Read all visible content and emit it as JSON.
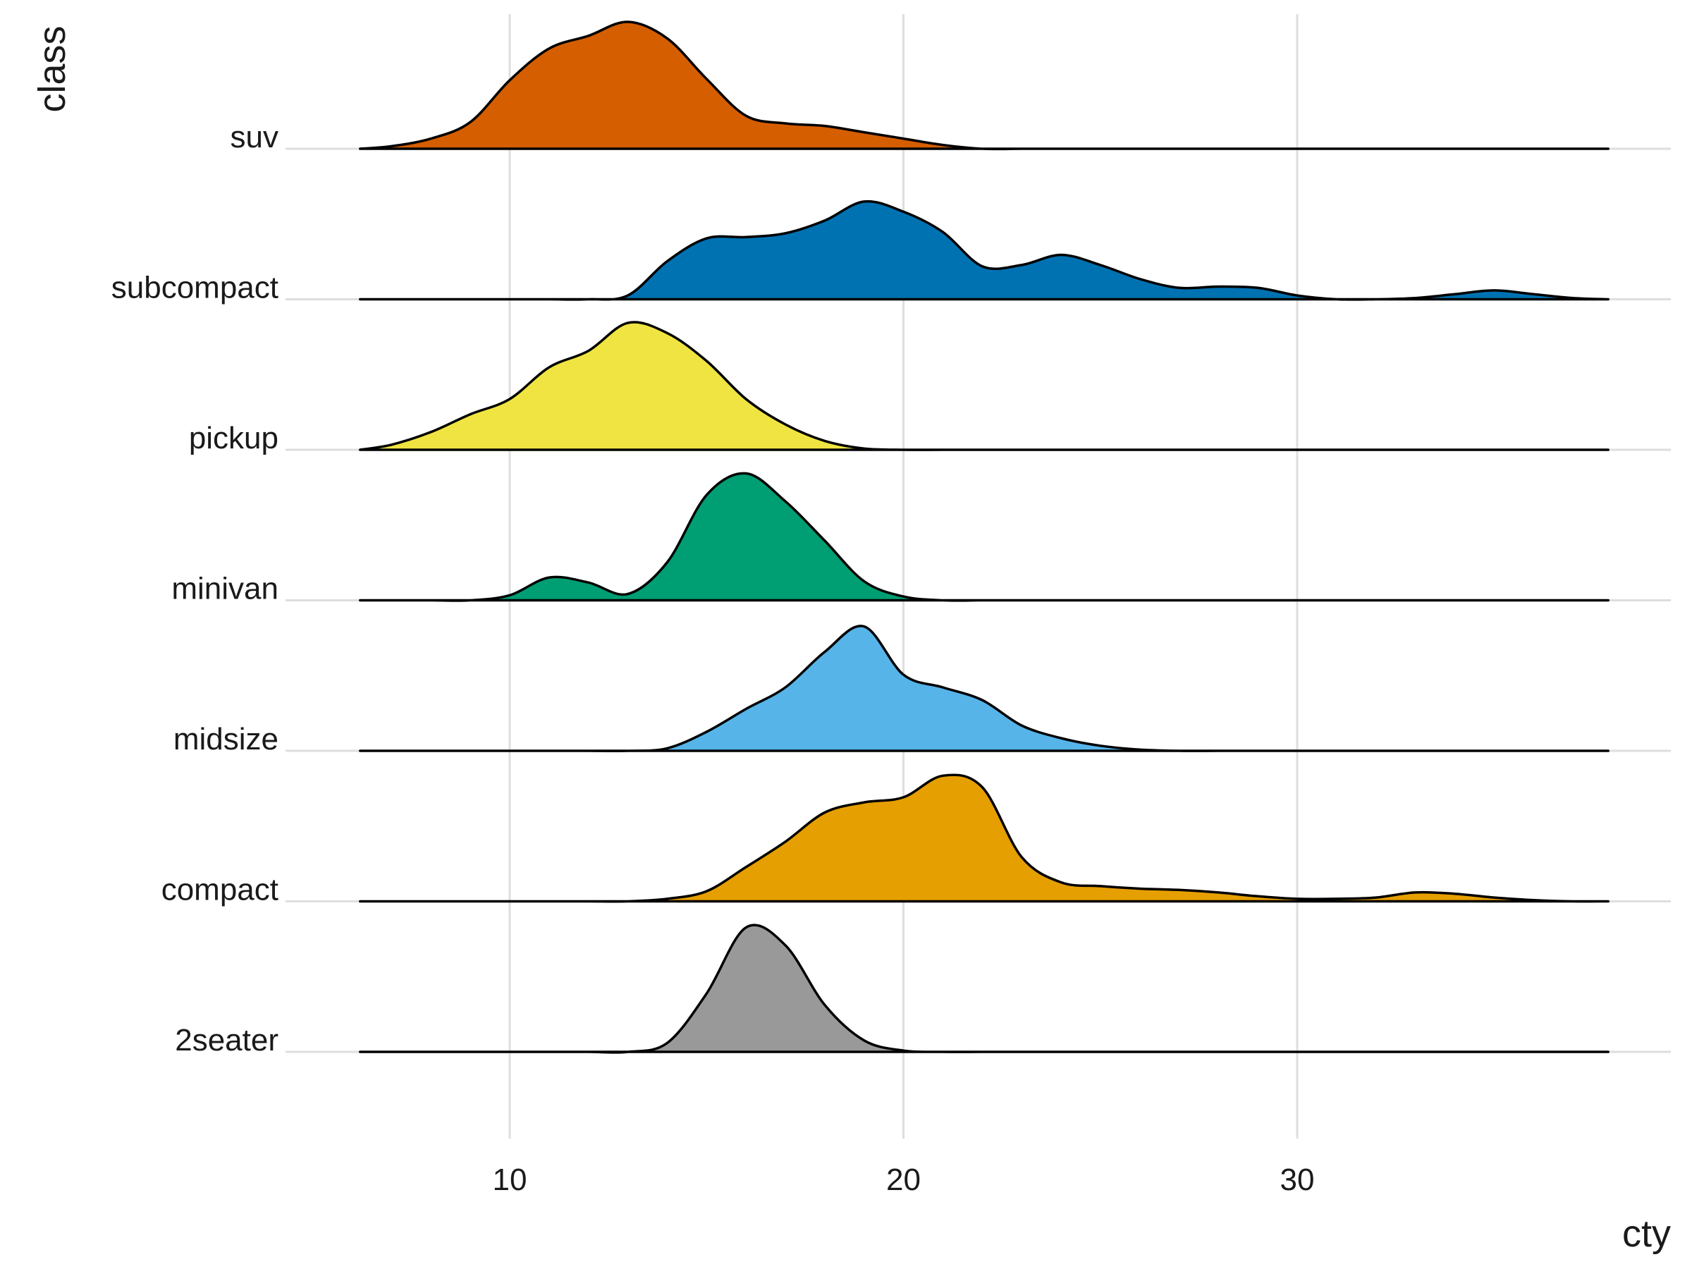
{
  "chart_data": {
    "type": "ridgeline",
    "xlabel": "cty",
    "ylabel": "class",
    "x_range": [
      6.2,
      37.9
    ],
    "x_ticks": [
      10,
      20,
      30
    ],
    "x_tick_labels": [
      "10",
      "20",
      "30"
    ],
    "grid": true,
    "legend": "none",
    "x": [
      6,
      7,
      8,
      9,
      10,
      11,
      12,
      13,
      14,
      15,
      16,
      17,
      18,
      19,
      20,
      21,
      22,
      23,
      24,
      25,
      26,
      27,
      28,
      29,
      30,
      31,
      32,
      33,
      34,
      35,
      36,
      37,
      38
    ],
    "series": [
      {
        "name": "2seater",
        "color": "#999999",
        "density": [
          0,
          0,
          0,
          0,
          0,
          0,
          0,
          0,
          0.07,
          0.46,
          0.98,
          0.84,
          0.37,
          0.09,
          0.01,
          0,
          0,
          0,
          0,
          0,
          0,
          0,
          0,
          0,
          0,
          0,
          0,
          0,
          0,
          0,
          0,
          0,
          0
        ]
      },
      {
        "name": "compact",
        "color": "#E69F00",
        "density": [
          0,
          0,
          0,
          0,
          0,
          0,
          0,
          0,
          0.02,
          0.08,
          0.27,
          0.47,
          0.7,
          0.78,
          0.82,
          0.99,
          0.9,
          0.35,
          0.15,
          0.12,
          0.1,
          0.09,
          0.07,
          0.04,
          0.02,
          0.02,
          0.03,
          0.07,
          0.06,
          0.03,
          0.01,
          0,
          0
        ]
      },
      {
        "name": "midsize",
        "color": "#56B4E9",
        "density": [
          0,
          0,
          0,
          0,
          0,
          0,
          0,
          0,
          0.02,
          0.15,
          0.33,
          0.5,
          0.78,
          0.98,
          0.6,
          0.5,
          0.4,
          0.2,
          0.1,
          0.04,
          0.01,
          0,
          0,
          0,
          0,
          0,
          0,
          0,
          0,
          0,
          0,
          0,
          0
        ]
      },
      {
        "name": "minivan",
        "color": "#009E73",
        "density": [
          0,
          0,
          0,
          0,
          0.04,
          0.18,
          0.14,
          0.05,
          0.3,
          0.83,
          1,
          0.78,
          0.47,
          0.15,
          0.03,
          0,
          0,
          0,
          0,
          0,
          0,
          0,
          0,
          0,
          0,
          0,
          0,
          0,
          0,
          0,
          0,
          0,
          0
        ]
      },
      {
        "name": "pickup",
        "color": "#F0E442",
        "density": [
          0,
          0.04,
          0.14,
          0.28,
          0.4,
          0.65,
          0.78,
          1,
          0.92,
          0.7,
          0.4,
          0.2,
          0.07,
          0.01,
          0,
          0,
          0,
          0,
          0,
          0,
          0,
          0,
          0,
          0,
          0,
          0,
          0,
          0,
          0,
          0,
          0,
          0,
          0
        ]
      },
      {
        "name": "subcompact",
        "color": "#0072B2",
        "density": [
          0,
          0,
          0,
          0,
          0,
          0,
          0,
          0.03,
          0.3,
          0.48,
          0.49,
          0.52,
          0.62,
          0.77,
          0.69,
          0.53,
          0.26,
          0.27,
          0.35,
          0.27,
          0.16,
          0.09,
          0.1,
          0.09,
          0.03,
          0,
          0,
          0.01,
          0.04,
          0.07,
          0.04,
          0.01,
          0
        ]
      },
      {
        "name": "suv",
        "color": "#D55E00",
        "density": [
          0,
          0.02,
          0.08,
          0.21,
          0.54,
          0.79,
          0.89,
          1,
          0.87,
          0.55,
          0.26,
          0.2,
          0.18,
          0.13,
          0.08,
          0.03,
          0,
          0,
          0,
          0,
          0,
          0,
          0,
          0,
          0,
          0,
          0,
          0,
          0,
          0,
          0,
          0,
          0
        ]
      }
    ]
  }
}
